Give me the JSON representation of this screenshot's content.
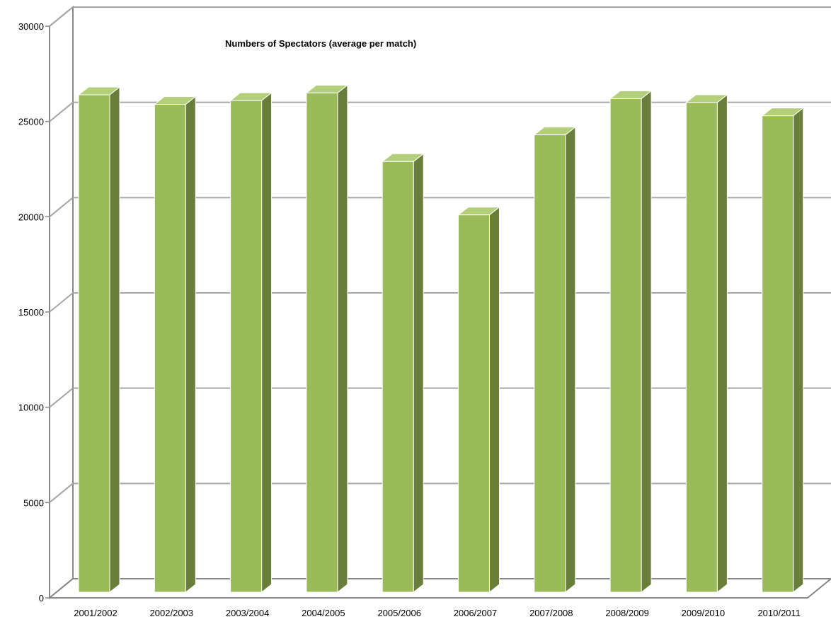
{
  "chart_data": {
    "type": "bar",
    "title": "Numbers of Spectators (average per match)",
    "xlabel": "",
    "ylabel": "",
    "ylim": [
      0,
      30000
    ],
    "yticks": [
      0,
      5000,
      10000,
      15000,
      20000,
      25000,
      30000
    ],
    "grid": true,
    "legend": "none",
    "categories": [
      "2001/2002",
      "2002/2003",
      "2003/2004",
      "2004/2005",
      "2005/2006",
      "2006/2007",
      "2007/2008",
      "2008/2009",
      "2009/2010",
      "2010/2011"
    ],
    "series": [
      {
        "values": [
          26100,
          25600,
          25800,
          26200,
          22600,
          19800,
          24000,
          25900,
          25700,
          25000
        ]
      }
    ],
    "colors": {
      "bar_front": "#9bbb59",
      "bar_side": "#687e3a",
      "bar_top": "#b3cf7a",
      "grid": "#a6a6a6",
      "axis": "#868686"
    }
  }
}
